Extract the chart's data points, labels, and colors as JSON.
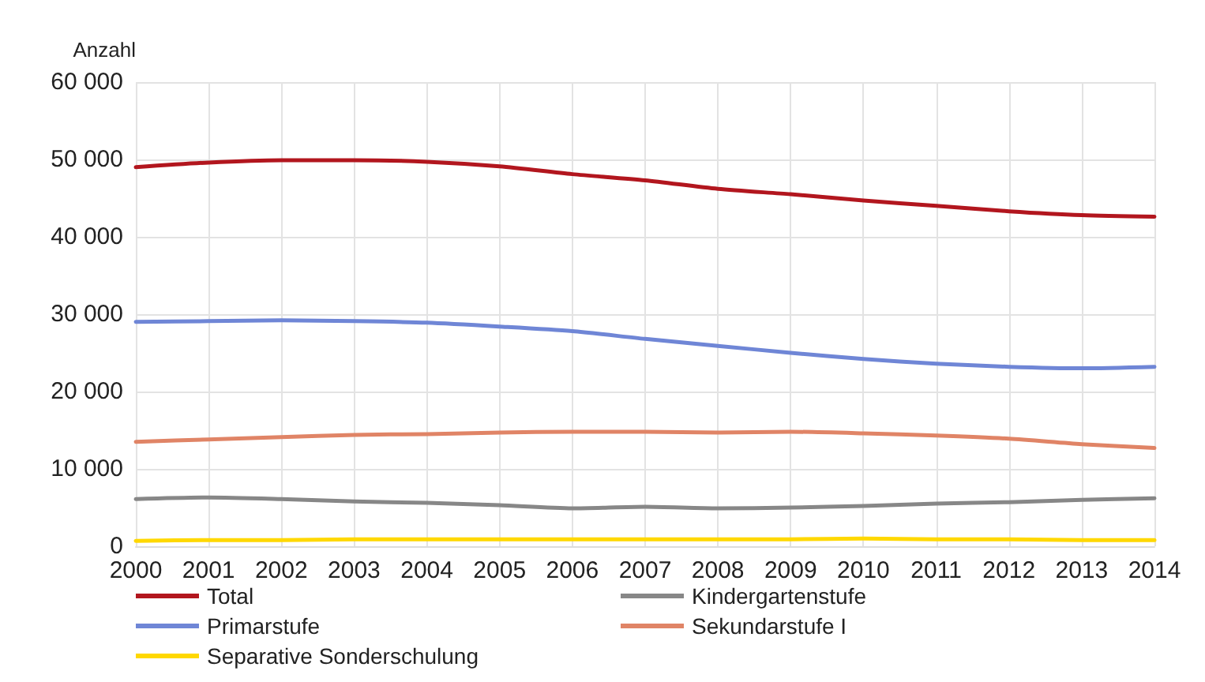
{
  "chart_data": {
    "type": "line",
    "ylabel": "Anzahl",
    "categories": [
      "2000",
      "2001",
      "2002",
      "2003",
      "2004",
      "2005",
      "2006",
      "2007",
      "2008",
      "2009",
      "2010",
      "2011",
      "2012",
      "2013",
      "2014"
    ],
    "series": [
      {
        "name": "Total",
        "color": "#b2161e",
        "values": [
          49000,
          49600,
          49900,
          49900,
          49700,
          49100,
          48100,
          47300,
          46200,
          45500,
          44700,
          44000,
          43300,
          42800,
          42600
        ]
      },
      {
        "name": "Kindergartenstufe",
        "color": "#878787",
        "values": [
          6100,
          6300,
          6100,
          5800,
          5600,
          5300,
          4900,
          5100,
          4900,
          5000,
          5200,
          5500,
          5700,
          6000,
          6200
        ]
      },
      {
        "name": "Primarstufe",
        "color": "#6f86d6",
        "values": [
          29000,
          29100,
          29200,
          29100,
          28900,
          28400,
          27800,
          26800,
          25900,
          25000,
          24200,
          23600,
          23200,
          23000,
          23200
        ]
      },
      {
        "name": "Sekundarstufe I",
        "color": "#e08466",
        "values": [
          13500,
          13800,
          14100,
          14400,
          14500,
          14700,
          14800,
          14800,
          14700,
          14800,
          14600,
          14300,
          13900,
          13200,
          12700
        ]
      },
      {
        "name": "Separative Sonderschulung",
        "color": "#ffd800",
        "values": [
          700,
          800,
          800,
          900,
          900,
          900,
          900,
          900,
          900,
          900,
          1000,
          900,
          900,
          800,
          800
        ]
      }
    ],
    "ylim": [
      0,
      60000
    ],
    "yticks": [
      {
        "value": 0,
        "label": "0"
      },
      {
        "value": 10000,
        "label": "10 000"
      },
      {
        "value": 20000,
        "label": "20 000"
      },
      {
        "value": 30000,
        "label": "30 000"
      },
      {
        "value": 40000,
        "label": "40 000"
      },
      {
        "value": 50000,
        "label": "50 000"
      },
      {
        "value": 60000,
        "label": "60 000"
      }
    ],
    "grid": true,
    "legend": "bottom",
    "marker": "none",
    "line_style": "solid"
  }
}
